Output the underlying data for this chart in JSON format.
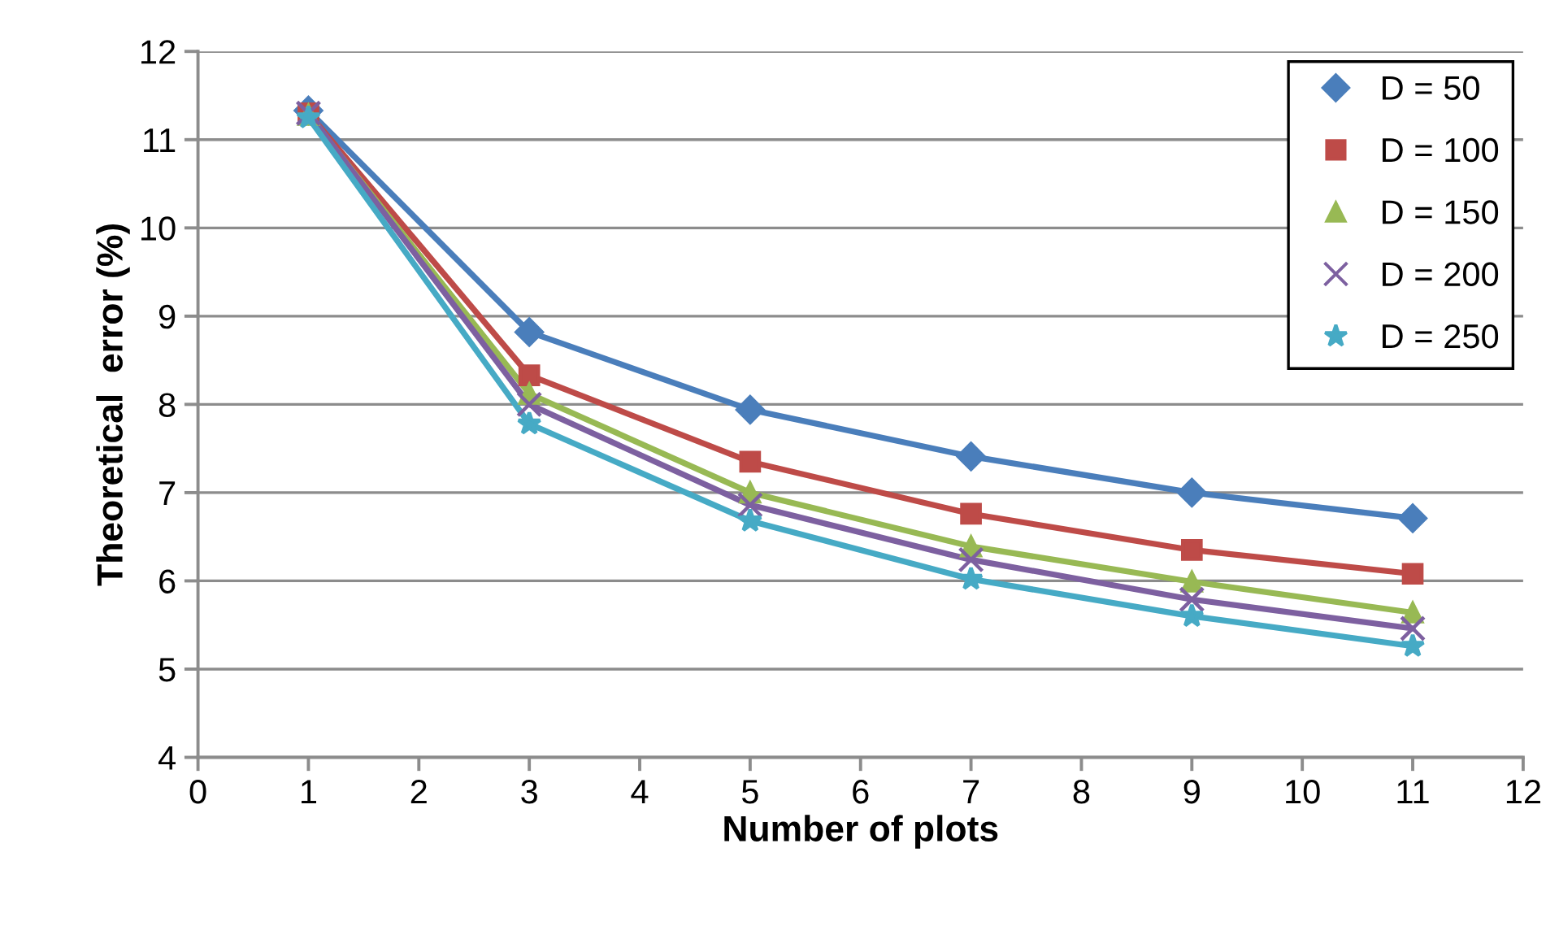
{
  "chart_data": {
    "type": "line",
    "xlabel": "Number of plots",
    "ylabel": "Theoretical  error (%)",
    "x": [
      1,
      3,
      5,
      7,
      9,
      11
    ],
    "series": [
      {
        "name": "D = 50",
        "color": "#4a7ebb",
        "marker": "diamond",
        "values": [
          11.33,
          8.82,
          7.94,
          7.41,
          7.0,
          6.71
        ]
      },
      {
        "name": "D = 100",
        "color": "#be4b48",
        "marker": "square",
        "values": [
          11.3,
          8.33,
          7.35,
          6.76,
          6.35,
          6.08
        ]
      },
      {
        "name": "D = 150",
        "color": "#98b954",
        "marker": "triangle",
        "values": [
          11.28,
          8.12,
          7.0,
          6.39,
          5.99,
          5.64
        ]
      },
      {
        "name": "D = 200",
        "color": "#7d60a0",
        "marker": "cross",
        "values": [
          11.3,
          8.0,
          6.86,
          6.24,
          5.79,
          5.46
        ]
      },
      {
        "name": "D = 250",
        "color": "#46aac5",
        "marker": "star",
        "values": [
          11.25,
          7.78,
          6.68,
          6.02,
          5.6,
          5.26
        ]
      }
    ],
    "xlim": [
      0,
      12
    ],
    "xticks": [
      0,
      1,
      2,
      3,
      4,
      5,
      6,
      7,
      8,
      9,
      10,
      11,
      12
    ],
    "ylim": [
      4,
      12
    ],
    "yticks": [
      4,
      5,
      6,
      7,
      8,
      9,
      10,
      11,
      12
    ],
    "grid": "y",
    "legend": "top right",
    "line_style": "solid"
  }
}
